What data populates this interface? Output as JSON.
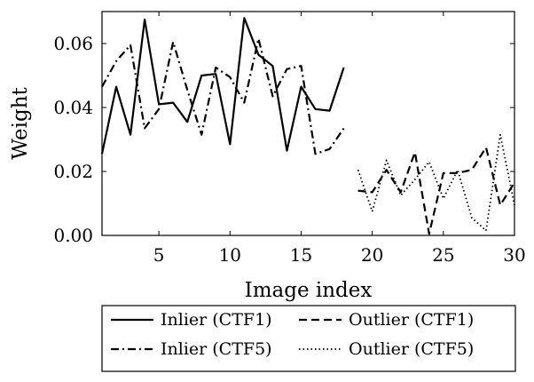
{
  "chart_data": {
    "type": "line",
    "xlabel": "Image index",
    "ylabel": "Weight",
    "xlim": [
      1,
      30
    ],
    "ylim": [
      0,
      0.07
    ],
    "x_ticks": [
      5,
      10,
      15,
      20,
      25,
      30
    ],
    "x_tick_labels": [
      "5",
      "10",
      "15",
      "20",
      "25",
      "30"
    ],
    "y_ticks": [
      0,
      0.02,
      0.04,
      0.06
    ],
    "y_tick_labels": [
      "0.00",
      "0.02",
      "0.04",
      "0.06"
    ],
    "grid": false,
    "legend_position": "below",
    "series": [
      {
        "name": "Inlier (CTF1)",
        "style": "solid",
        "color": "#000000",
        "x": [
          1,
          2,
          3,
          4,
          5,
          6,
          7,
          8,
          9,
          10,
          11,
          12,
          13,
          14,
          15,
          16,
          17,
          18
        ],
        "y": [
          0.0255,
          0.0465,
          0.0315,
          0.0675,
          0.041,
          0.0415,
          0.0355,
          0.05,
          0.0505,
          0.0285,
          0.068,
          0.0565,
          0.053,
          0.0265,
          0.0465,
          0.0395,
          0.039,
          0.0525
        ]
      },
      {
        "name": "Outlier (CTF1)",
        "style": "dashed",
        "color": "#000000",
        "x": [
          19,
          20,
          21,
          22,
          23,
          24,
          25,
          26,
          27,
          28,
          29,
          30
        ],
        "y": [
          0.014,
          0.0135,
          0.0205,
          0.0135,
          0.026,
          0.0005,
          0.0195,
          0.0195,
          0.0205,
          0.0275,
          0.0095,
          0.0165
        ]
      },
      {
        "name": "Inlier (CTF5)",
        "style": "dashdot",
        "color": "#000000",
        "x": [
          1,
          2,
          3,
          4,
          5,
          6,
          7,
          8,
          9,
          10,
          11,
          12,
          13,
          14,
          15,
          16,
          17,
          18
        ],
        "y": [
          0.0465,
          0.0545,
          0.0595,
          0.0335,
          0.0395,
          0.0605,
          0.0455,
          0.0315,
          0.0525,
          0.0495,
          0.0415,
          0.0615,
          0.0435,
          0.052,
          0.053,
          0.0255,
          0.027,
          0.0335
        ]
      },
      {
        "name": "Outlier (CTF5)",
        "style": "dotted",
        "color": "#000000",
        "x": [
          19,
          20,
          21,
          22,
          23,
          24,
          25,
          26,
          27,
          28,
          29,
          30
        ],
        "y": [
          0.0205,
          0.0075,
          0.0235,
          0.0125,
          0.0175,
          0.023,
          0.0115,
          0.0205,
          0.0055,
          0.0015,
          0.0315,
          0.0095
        ]
      }
    ],
    "legend": [
      {
        "label": "Inlier (CTF1)",
        "style": "solid"
      },
      {
        "label": "Outlier (CTF1)",
        "style": "dashed"
      },
      {
        "label": "Inlier (CTF5)",
        "style": "dashdot"
      },
      {
        "label": "Outlier (CTF5)",
        "style": "dotted"
      }
    ]
  }
}
